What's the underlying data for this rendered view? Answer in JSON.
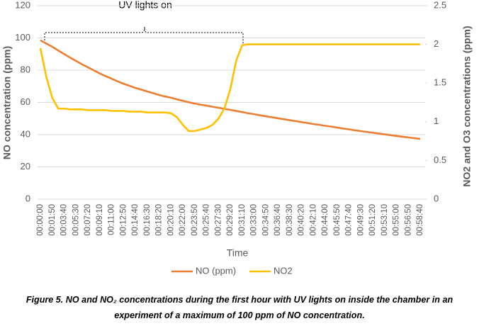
{
  "chart_data": {
    "type": "line",
    "annotation": "UV lights on",
    "x_label": "Time",
    "y_label": "NO concentration (ppm)",
    "y2_label": "NO2 and O3 concentrations (ppm)",
    "caption": "Figure 5. NO and NO₂ concentrations during the first hour with UV lights on inside the chamber in an experiment of a maximum of 100 ppm of NO concentration.",
    "categories": [
      "00:00:00",
      null,
      "00:01:50",
      null,
      "00:03:40",
      null,
      "00:05:30",
      null,
      "00:07:20",
      null,
      "00:09:10",
      null,
      "00:11:00",
      null,
      "00:12:50",
      null,
      "00:14:40",
      null,
      "00:16:30",
      null,
      "00:18:20",
      null,
      "00:20:10",
      null,
      "00:22:00",
      null,
      "00:23:50",
      null,
      "00:25:40",
      null,
      "00:27:30",
      null,
      "00:29:20",
      null,
      "00:31:10",
      null,
      "00:33:00",
      null,
      "00:34:50",
      null,
      "00:36:40",
      null,
      "00:38:30",
      null,
      "00:40:20",
      null,
      "00:42:10",
      null,
      "00:44:00",
      null,
      "00:45:50",
      null,
      "00:47:40",
      null,
      "00:49:30",
      null,
      "00:51:20",
      null,
      "00:53:10",
      null,
      "00:55:00",
      null,
      "00:56:50",
      null,
      "00:58:40"
    ],
    "series": [
      {
        "name": "NO (ppm)",
        "color": "#ED7D31",
        "axis": "y",
        "values": [
          98.5,
          96.5,
          94.5,
          92.2,
          90,
          87.8,
          85.7,
          83.7,
          81.8,
          79.9,
          78,
          76.3,
          74.7,
          73.1,
          71.6,
          70.3,
          69,
          67.9,
          66.8,
          65.7,
          64.6,
          63.7,
          62.9,
          61.9,
          61,
          60.1,
          59.3,
          58.6,
          58,
          57.3,
          56.7,
          56,
          55.4,
          54.7,
          54,
          53.3,
          52.7,
          52,
          51.4,
          50.8,
          50.2,
          49.6,
          49,
          48.4,
          47.8,
          47.2,
          46.6,
          46.1,
          45.5,
          45,
          44.4,
          43.8,
          43.3,
          42.7,
          42.2,
          41.7,
          41.2,
          40.7,
          40.2,
          39.7,
          39.2,
          38.7,
          38.3,
          37.8,
          37.4
        ]
      },
      {
        "name": "NO2",
        "color": "#FFC000",
        "axis": "y2",
        "values": [
          1.95,
          1.58,
          1.31,
          1.17,
          1.17,
          1.16,
          1.16,
          1.16,
          1.15,
          1.15,
          1.15,
          1.15,
          1.14,
          1.14,
          1.14,
          1.13,
          1.13,
          1.13,
          1.12,
          1.12,
          1.12,
          1.12,
          1.11,
          1.06,
          0.96,
          0.88,
          0.88,
          0.9,
          0.92,
          0.96,
          1.04,
          1.17,
          1.42,
          1.79,
          1.99,
          2,
          2,
          2,
          2,
          2,
          2,
          2,
          2,
          2,
          2,
          2,
          2,
          2,
          2,
          2,
          2,
          2,
          2,
          2,
          2,
          2,
          2,
          2,
          2,
          2,
          2,
          2,
          2,
          2,
          2
        ]
      }
    ],
    "ylim": [
      0,
      120
    ],
    "yticks": [
      0,
      20,
      40,
      60,
      80,
      100,
      120
    ],
    "y2lim": [
      0,
      2.5
    ],
    "y2ticks": [
      0,
      0.5,
      1,
      1.5,
      2,
      2.5
    ],
    "grid": true,
    "legend": "bottom"
  }
}
